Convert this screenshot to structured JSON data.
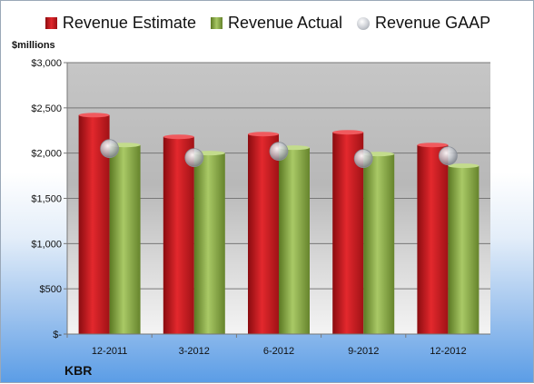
{
  "legend": {
    "estimate": "Revenue Estimate",
    "actual": "Revenue Actual",
    "gaap": "Revenue GAAP"
  },
  "units_label": "$millions",
  "company": "KBR",
  "colors": {
    "estimate": "#d42327",
    "actual": "#9bbb59",
    "gaap": "#c0c4ca",
    "plot_bg": "#c0c0c0"
  },
  "chart_data": {
    "type": "bar",
    "title": "",
    "ylabel": "$millions",
    "categories": [
      "12-2011",
      "3-2012",
      "6-2012",
      "9-2012",
      "12-2012"
    ],
    "series": [
      {
        "name": "Revenue Estimate",
        "values": [
          2420,
          2180,
          2210,
          2230,
          2090
        ]
      },
      {
        "name": "Revenue Actual",
        "values": [
          2090,
          2000,
          2060,
          1990,
          1860
        ]
      },
      {
        "name": "Revenue GAAP",
        "values": [
          2050,
          1950,
          2020,
          1940,
          1970
        ]
      }
    ],
    "ylim": [
      0,
      3000
    ],
    "yticks": [
      0,
      500,
      1000,
      1500,
      2000,
      2500,
      3000
    ],
    "ytick_labels": [
      "$-",
      "$500",
      "$1,000",
      "$1,500",
      "$2,000",
      "$2,500",
      "$3,000"
    ],
    "grid": true,
    "legend_position": "top"
  }
}
